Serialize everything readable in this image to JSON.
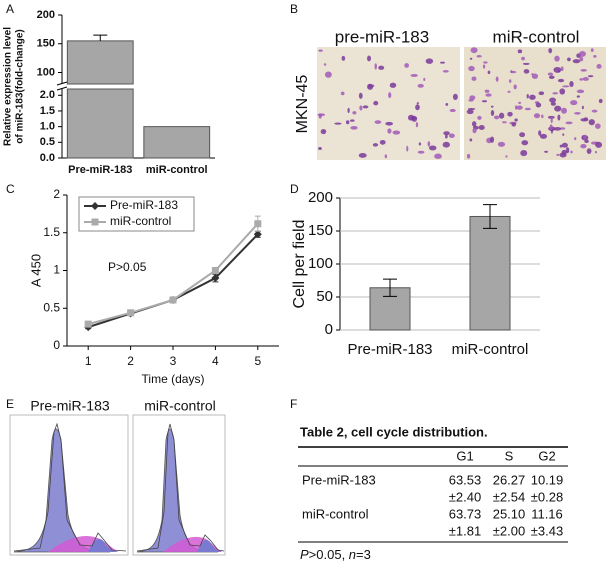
{
  "panel_labels": [
    "A",
    "B",
    "C",
    "D",
    "E",
    "F"
  ],
  "chart_data": [
    {
      "type": "bar",
      "categories": [
        "Pre-miR-183",
        "miR-control"
      ],
      "values": [
        155,
        1.0
      ],
      "errors": [
        10,
        0
      ],
      "ylabel": [
        "Relative expression level",
        "of miR-183(fold-change)"
      ],
      "color": "#a6a6a6",
      "ylim": [
        0,
        200
      ],
      "y_break": [
        2.2,
        80
      ],
      "yticks": [
        {
          "value": 0,
          "label": "0.0"
        },
        {
          "value": 0.5,
          "label": "0.5"
        },
        {
          "value": 1,
          "label": "1.0"
        },
        {
          "value": 1.5,
          "label": "1.5"
        },
        {
          "value": 2,
          "label": "2.0"
        },
        100,
        150,
        200
      ],
      "grid": false
    },
    {
      "type": "line",
      "x": [
        1,
        2,
        3,
        4,
        5
      ],
      "xlabel": "Time (days)",
      "ylabel": "A 450",
      "annotation": "P>0.05",
      "xlim": [
        0.5,
        5.5
      ],
      "xticks": [
        1,
        2,
        3,
        4,
        5
      ],
      "ylim": [
        0,
        2
      ],
      "yticks": [
        0,
        0.5,
        1,
        1.5,
        2
      ],
      "legend": "upper left",
      "grid": false,
      "series": [
        {
          "name": "Pre-miR-183",
          "color": "#333333",
          "marker": "diamond",
          "values": [
            0.25,
            0.43,
            0.61,
            0.9,
            1.48
          ],
          "errors": [
            0.02,
            0.02,
            0.02,
            0.05,
            0.04
          ]
        },
        {
          "name": "miR-control",
          "color": "#aaaaaa",
          "marker": "square",
          "values": [
            0.29,
            0.44,
            0.61,
            1.0,
            1.62
          ],
          "errors": [
            0.02,
            0.02,
            0.02,
            0.04,
            0.1
          ]
        }
      ]
    },
    {
      "type": "bar",
      "categories": [
        "Pre-miR-183",
        "miR-control"
      ],
      "values": [
        64,
        172
      ],
      "errors": [
        13,
        18
      ],
      "ylabel": "Cell per field",
      "color": "#a6a6a6",
      "ylim": [
        0,
        200
      ],
      "yticks": [
        0,
        50,
        100,
        150,
        200
      ],
      "grid": true
    }
  ],
  "images": {
    "labels": [
      "pre-miR-183",
      "miR-control"
    ],
    "cell_line": "MKN-45"
  },
  "flow": {
    "labels": [
      "Pre-miR-183",
      "miR-control"
    ]
  },
  "table": {
    "title": "Table 2,  cell cycle distribution.",
    "headers": [
      "G1",
      "S",
      "G2"
    ],
    "rows": [
      [
        "Pre-miR-183",
        "63.53",
        "26.27",
        "10.19"
      ],
      [
        "",
        "±2.40",
        "±2.54",
        "±0.28"
      ],
      [
        "miR-control",
        "63.73",
        "25.10",
        "11.16"
      ],
      [
        "",
        "±1.81",
        "±2.00",
        "±3.43"
      ]
    ],
    "footnote": [
      "P",
      ">0.05, ",
      "n",
      "=3"
    ]
  }
}
